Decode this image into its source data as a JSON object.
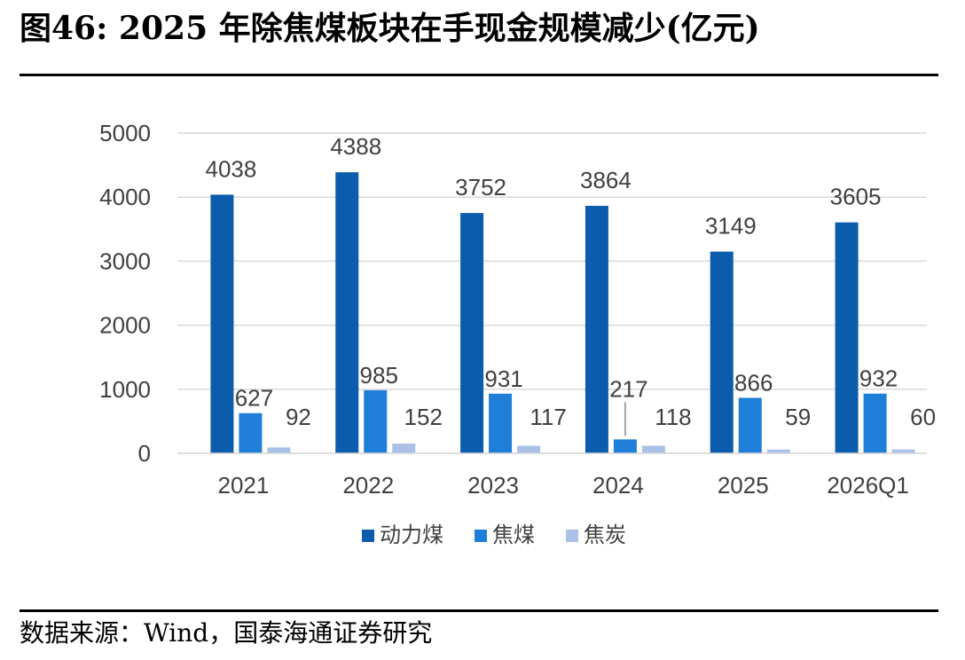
{
  "header": {
    "title": "图46:  2025 年除焦煤板块在手现金规模减少(亿元)"
  },
  "footer": {
    "source": "数据来源：Wind，国泰海通证券研究"
  },
  "chart_data": {
    "type": "bar",
    "categories": [
      "2021",
      "2022",
      "2023",
      "2024",
      "2025",
      "2026Q1"
    ],
    "series": [
      {
        "name": "动力煤",
        "color": "#0B5CAD",
        "values": [
          4038,
          4388,
          3752,
          3864,
          3149,
          3605
        ]
      },
      {
        "name": "焦煤",
        "color": "#1F7FD8",
        "values": [
          627,
          985,
          931,
          217,
          866,
          932
        ]
      },
      {
        "name": "焦炭",
        "color": "#A9C1E6",
        "values": [
          92,
          152,
          117,
          118,
          59,
          60
        ]
      }
    ],
    "y_ticks": [
      "0",
      "1000",
      "2000",
      "3000",
      "4000",
      "5000"
    ],
    "ylim": [
      0,
      5000
    ],
    "grid": true,
    "legend_position": "bottom-center",
    "title": "",
    "xlabel": "",
    "ylabel": ""
  }
}
